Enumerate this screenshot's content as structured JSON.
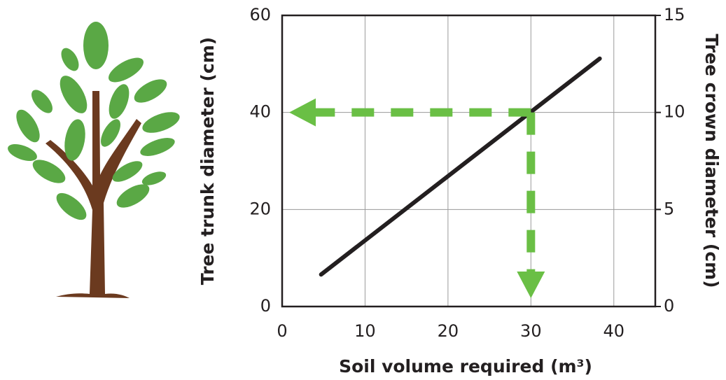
{
  "chart_data": {
    "type": "line",
    "xlabel": "Soil volume required (m³)",
    "ylabel": "Tree trunk diameter (cm)",
    "y2label": "Tree crown diameter (cm)",
    "xlim": [
      0,
      45
    ],
    "xticks": [
      0,
      10,
      20,
      30,
      40
    ],
    "ylim": [
      0,
      60
    ],
    "yticks": [
      0,
      20,
      40,
      60
    ],
    "y2lim": [
      0,
      15
    ],
    "y2ticks": [
      0,
      5,
      10,
      15
    ],
    "grid": true,
    "series": [
      {
        "x": [
          4.7,
          38.3
        ],
        "values": [
          6.6,
          51.1
        ],
        "color": "#231f20"
      }
    ],
    "guide": {
      "x": 30,
      "y": 40,
      "color": "#6abf45"
    }
  }
}
